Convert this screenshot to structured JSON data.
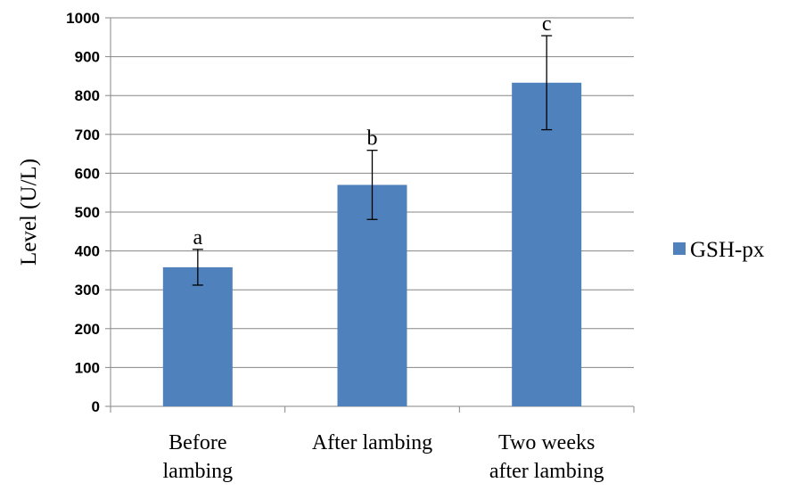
{
  "chart_data": {
    "type": "bar",
    "categories": [
      [
        "Before",
        "lambing"
      ],
      [
        "After lambing"
      ],
      [
        "Two weeks",
        "after lambing"
      ]
    ],
    "series": [
      {
        "name": "GSH-px",
        "color": "#4F81BD",
        "values": [
          358,
          570,
          833
        ],
        "error": [
          46,
          89,
          121
        ],
        "significance": [
          "a",
          "b",
          "c"
        ]
      }
    ],
    "title": "",
    "xlabel": "",
    "ylabel": "Level (U/L)",
    "ylim": [
      0,
      1000
    ],
    "yticks": [
      0,
      100,
      200,
      300,
      400,
      500,
      600,
      700,
      800,
      900,
      1000
    ],
    "grid": true,
    "legend": "right"
  }
}
